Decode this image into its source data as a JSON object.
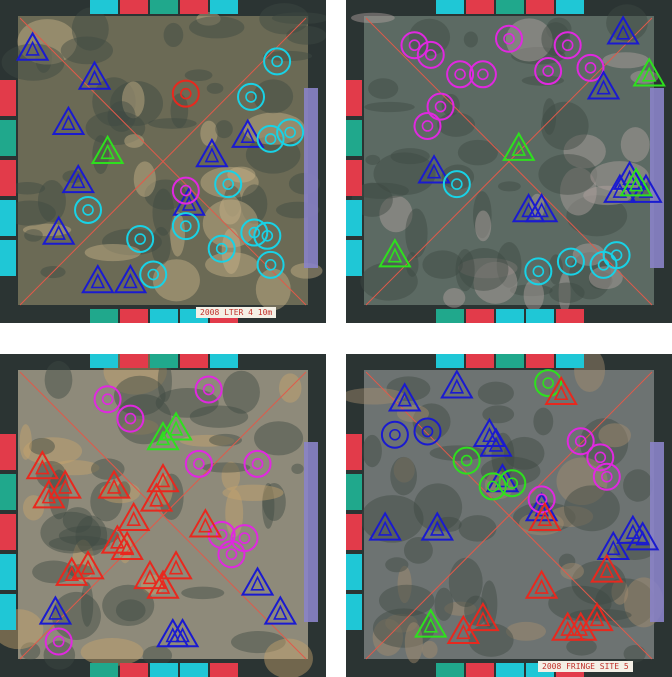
{
  "panels": [
    {
      "id": "tl",
      "caption": "2008 LTER 4 10m",
      "palette": {
        "floor": "#6b6a55",
        "coral": "#c9b38a",
        "frame": "#2b3433"
      },
      "markers": [
        {
          "s": "tri",
          "c": "blue",
          "x": 0.1,
          "y": 0.15
        },
        {
          "s": "tri",
          "c": "blue",
          "x": 0.29,
          "y": 0.24
        },
        {
          "s": "tri",
          "c": "blue",
          "x": 0.21,
          "y": 0.38
        },
        {
          "s": "tri",
          "c": "blue",
          "x": 0.24,
          "y": 0.56
        },
        {
          "s": "tri",
          "c": "blue",
          "x": 0.65,
          "y": 0.48
        },
        {
          "s": "tri",
          "c": "blue",
          "x": 0.76,
          "y": 0.42
        },
        {
          "s": "tri",
          "c": "blue",
          "x": 0.18,
          "y": 0.72
        },
        {
          "s": "tri",
          "c": "blue",
          "x": 0.3,
          "y": 0.87
        },
        {
          "s": "tri",
          "c": "blue",
          "x": 0.58,
          "y": 0.63
        },
        {
          "s": "tri",
          "c": "blue",
          "x": 0.4,
          "y": 0.87
        },
        {
          "s": "tri",
          "c": "green",
          "x": 0.33,
          "y": 0.47
        },
        {
          "s": "cir",
          "c": "cyan",
          "x": 0.85,
          "y": 0.19
        },
        {
          "s": "cir",
          "c": "cyan",
          "x": 0.77,
          "y": 0.3
        },
        {
          "s": "cir",
          "c": "cyan",
          "x": 0.83,
          "y": 0.43
        },
        {
          "s": "cir",
          "c": "cyan",
          "x": 0.89,
          "y": 0.41
        },
        {
          "s": "cir",
          "c": "cyan",
          "x": 0.7,
          "y": 0.57
        },
        {
          "s": "cir",
          "c": "cyan",
          "x": 0.57,
          "y": 0.7
        },
        {
          "s": "cir",
          "c": "cyan",
          "x": 0.43,
          "y": 0.74
        },
        {
          "s": "cir",
          "c": "cyan",
          "x": 0.47,
          "y": 0.85
        },
        {
          "s": "cir",
          "c": "cyan",
          "x": 0.68,
          "y": 0.77
        },
        {
          "s": "cir",
          "c": "cyan",
          "x": 0.78,
          "y": 0.72
        },
        {
          "s": "cir",
          "c": "cyan",
          "x": 0.82,
          "y": 0.73
        },
        {
          "s": "cir",
          "c": "cyan",
          "x": 0.83,
          "y": 0.82
        },
        {
          "s": "cir",
          "c": "cyan",
          "x": 0.27,
          "y": 0.65
        },
        {
          "s": "cir",
          "c": "red",
          "x": 0.57,
          "y": 0.29
        },
        {
          "s": "cir",
          "c": "magenta",
          "x": 0.57,
          "y": 0.59
        }
      ]
    },
    {
      "id": "tr",
      "caption": "",
      "palette": {
        "floor": "#5c6a63",
        "coral": "#b4a3a1",
        "frame": "#2b3433"
      },
      "markers": [
        {
          "s": "cir",
          "c": "magenta",
          "x": 0.21,
          "y": 0.14
        },
        {
          "s": "cir",
          "c": "magenta",
          "x": 0.26,
          "y": 0.17
        },
        {
          "s": "cir",
          "c": "magenta",
          "x": 0.35,
          "y": 0.23
        },
        {
          "s": "cir",
          "c": "magenta",
          "x": 0.42,
          "y": 0.23
        },
        {
          "s": "cir",
          "c": "magenta",
          "x": 0.5,
          "y": 0.12
        },
        {
          "s": "cir",
          "c": "magenta",
          "x": 0.62,
          "y": 0.22
        },
        {
          "s": "cir",
          "c": "magenta",
          "x": 0.68,
          "y": 0.14
        },
        {
          "s": "cir",
          "c": "magenta",
          "x": 0.75,
          "y": 0.21
        },
        {
          "s": "cir",
          "c": "magenta",
          "x": 0.29,
          "y": 0.33
        },
        {
          "s": "cir",
          "c": "magenta",
          "x": 0.25,
          "y": 0.39
        },
        {
          "s": "tri",
          "c": "blue",
          "x": 0.79,
          "y": 0.27
        },
        {
          "s": "tri",
          "c": "blue",
          "x": 0.85,
          "y": 0.1
        },
        {
          "s": "tri",
          "c": "blue",
          "x": 0.27,
          "y": 0.53
        },
        {
          "s": "tri",
          "c": "blue",
          "x": 0.56,
          "y": 0.65
        },
        {
          "s": "tri",
          "c": "blue",
          "x": 0.6,
          "y": 0.65
        },
        {
          "s": "tri",
          "c": "blue",
          "x": 0.84,
          "y": 0.59
        },
        {
          "s": "tri",
          "c": "blue",
          "x": 0.87,
          "y": 0.55
        },
        {
          "s": "tri",
          "c": "blue",
          "x": 0.92,
          "y": 0.59
        },
        {
          "s": "tri",
          "c": "green",
          "x": 0.93,
          "y": 0.23
        },
        {
          "s": "tri",
          "c": "green",
          "x": 0.53,
          "y": 0.46
        },
        {
          "s": "tri",
          "c": "green",
          "x": 0.15,
          "y": 0.79
        },
        {
          "s": "tri",
          "c": "green",
          "x": 0.89,
          "y": 0.57
        },
        {
          "s": "cir",
          "c": "cyan",
          "x": 0.34,
          "y": 0.57
        },
        {
          "s": "cir",
          "c": "cyan",
          "x": 0.59,
          "y": 0.84
        },
        {
          "s": "cir",
          "c": "cyan",
          "x": 0.69,
          "y": 0.81
        },
        {
          "s": "cir",
          "c": "cyan",
          "x": 0.79,
          "y": 0.82
        },
        {
          "s": "cir",
          "c": "cyan",
          "x": 0.83,
          "y": 0.79
        }
      ]
    },
    {
      "id": "bl",
      "caption": "",
      "palette": {
        "floor": "#8e8a7a",
        "coral": "#c7a36c",
        "frame": "#2b3433"
      },
      "markers": [
        {
          "s": "cir",
          "c": "magenta",
          "x": 0.33,
          "y": 0.14
        },
        {
          "s": "cir",
          "c": "magenta",
          "x": 0.4,
          "y": 0.2
        },
        {
          "s": "cir",
          "c": "magenta",
          "x": 0.64,
          "y": 0.11
        },
        {
          "s": "cir",
          "c": "magenta",
          "x": 0.61,
          "y": 0.34
        },
        {
          "s": "cir",
          "c": "magenta",
          "x": 0.79,
          "y": 0.34
        },
        {
          "s": "cir",
          "c": "magenta",
          "x": 0.68,
          "y": 0.56
        },
        {
          "s": "cir",
          "c": "magenta",
          "x": 0.75,
          "y": 0.57
        },
        {
          "s": "cir",
          "c": "magenta",
          "x": 0.71,
          "y": 0.62
        },
        {
          "s": "cir",
          "c": "magenta",
          "x": 0.18,
          "y": 0.89
        },
        {
          "s": "tri",
          "c": "green",
          "x": 0.54,
          "y": 0.23
        },
        {
          "s": "tri",
          "c": "green",
          "x": 0.5,
          "y": 0.26
        },
        {
          "s": "tri",
          "c": "red",
          "x": 0.13,
          "y": 0.35
        },
        {
          "s": "tri",
          "c": "red",
          "x": 0.2,
          "y": 0.41
        },
        {
          "s": "tri",
          "c": "red",
          "x": 0.15,
          "y": 0.44
        },
        {
          "s": "tri",
          "c": "red",
          "x": 0.35,
          "y": 0.41
        },
        {
          "s": "tri",
          "c": "red",
          "x": 0.5,
          "y": 0.39
        },
        {
          "s": "tri",
          "c": "red",
          "x": 0.48,
          "y": 0.45
        },
        {
          "s": "tri",
          "c": "red",
          "x": 0.41,
          "y": 0.51
        },
        {
          "s": "tri",
          "c": "red",
          "x": 0.36,
          "y": 0.58
        },
        {
          "s": "tri",
          "c": "red",
          "x": 0.39,
          "y": 0.6
        },
        {
          "s": "tri",
          "c": "red",
          "x": 0.63,
          "y": 0.53
        },
        {
          "s": "tri",
          "c": "red",
          "x": 0.27,
          "y": 0.66
        },
        {
          "s": "tri",
          "c": "red",
          "x": 0.22,
          "y": 0.68
        },
        {
          "s": "tri",
          "c": "red",
          "x": 0.46,
          "y": 0.69
        },
        {
          "s": "tri",
          "c": "red",
          "x": 0.54,
          "y": 0.66
        },
        {
          "s": "tri",
          "c": "red",
          "x": 0.5,
          "y": 0.72
        },
        {
          "s": "tri",
          "c": "blue",
          "x": 0.17,
          "y": 0.8
        },
        {
          "s": "tri",
          "c": "blue",
          "x": 0.53,
          "y": 0.87
        },
        {
          "s": "tri",
          "c": "blue",
          "x": 0.56,
          "y": 0.87
        },
        {
          "s": "tri",
          "c": "blue",
          "x": 0.79,
          "y": 0.71
        },
        {
          "s": "tri",
          "c": "blue",
          "x": 0.86,
          "y": 0.8
        }
      ]
    },
    {
      "id": "br",
      "caption": "2008 FRINGE SITE 5",
      "palette": {
        "floor": "#6d7372",
        "coral": "#a68f6e",
        "frame": "#2b3433"
      },
      "markers": [
        {
          "s": "tri",
          "c": "blue",
          "x": 0.18,
          "y": 0.14
        },
        {
          "s": "tri",
          "c": "blue",
          "x": 0.34,
          "y": 0.1
        },
        {
          "s": "tri",
          "c": "blue",
          "x": 0.44,
          "y": 0.25
        },
        {
          "s": "tri",
          "c": "blue",
          "x": 0.46,
          "y": 0.28
        },
        {
          "s": "tri",
          "c": "blue",
          "x": 0.12,
          "y": 0.54
        },
        {
          "s": "tri",
          "c": "blue",
          "x": 0.28,
          "y": 0.54
        },
        {
          "s": "tri",
          "c": "blue",
          "x": 0.48,
          "y": 0.39
        },
        {
          "s": "tri",
          "c": "blue",
          "x": 0.82,
          "y": 0.6
        },
        {
          "s": "tri",
          "c": "blue",
          "x": 0.88,
          "y": 0.55
        },
        {
          "s": "tri",
          "c": "blue",
          "x": 0.91,
          "y": 0.57
        },
        {
          "s": "tri",
          "c": "blue",
          "x": 0.6,
          "y": 0.48
        },
        {
          "s": "cir",
          "c": "blue",
          "x": 0.15,
          "y": 0.25
        },
        {
          "s": "cir",
          "c": "blue",
          "x": 0.25,
          "y": 0.24
        },
        {
          "s": "cir",
          "c": "green",
          "x": 0.62,
          "y": 0.09
        },
        {
          "s": "cir",
          "c": "green",
          "x": 0.37,
          "y": 0.33
        },
        {
          "s": "cir",
          "c": "green",
          "x": 0.45,
          "y": 0.41
        },
        {
          "s": "cir",
          "c": "green",
          "x": 0.51,
          "y": 0.4
        },
        {
          "s": "cir",
          "c": "magenta",
          "x": 0.72,
          "y": 0.27
        },
        {
          "s": "cir",
          "c": "magenta",
          "x": 0.78,
          "y": 0.32
        },
        {
          "s": "cir",
          "c": "magenta",
          "x": 0.8,
          "y": 0.38
        },
        {
          "s": "cir",
          "c": "magenta",
          "x": 0.6,
          "y": 0.45
        },
        {
          "s": "tri",
          "c": "red",
          "x": 0.66,
          "y": 0.12
        },
        {
          "s": "tri",
          "c": "red",
          "x": 0.61,
          "y": 0.51
        },
        {
          "s": "tri",
          "c": "red",
          "x": 0.8,
          "y": 0.67
        },
        {
          "s": "tri",
          "c": "red",
          "x": 0.6,
          "y": 0.72
        },
        {
          "s": "tri",
          "c": "red",
          "x": 0.42,
          "y": 0.82
        },
        {
          "s": "tri",
          "c": "red",
          "x": 0.36,
          "y": 0.86
        },
        {
          "s": "tri",
          "c": "red",
          "x": 0.68,
          "y": 0.85
        },
        {
          "s": "tri",
          "c": "red",
          "x": 0.72,
          "y": 0.85
        },
        {
          "s": "tri",
          "c": "red",
          "x": 0.77,
          "y": 0.82
        },
        {
          "s": "tri",
          "c": "green",
          "x": 0.26,
          "y": 0.84
        }
      ]
    }
  ],
  "colors": {
    "blue": "#1a1ad0",
    "cyan": "#18d2e6",
    "magenta": "#e028e0",
    "green": "#2ee01e",
    "red": "#e8281e"
  }
}
